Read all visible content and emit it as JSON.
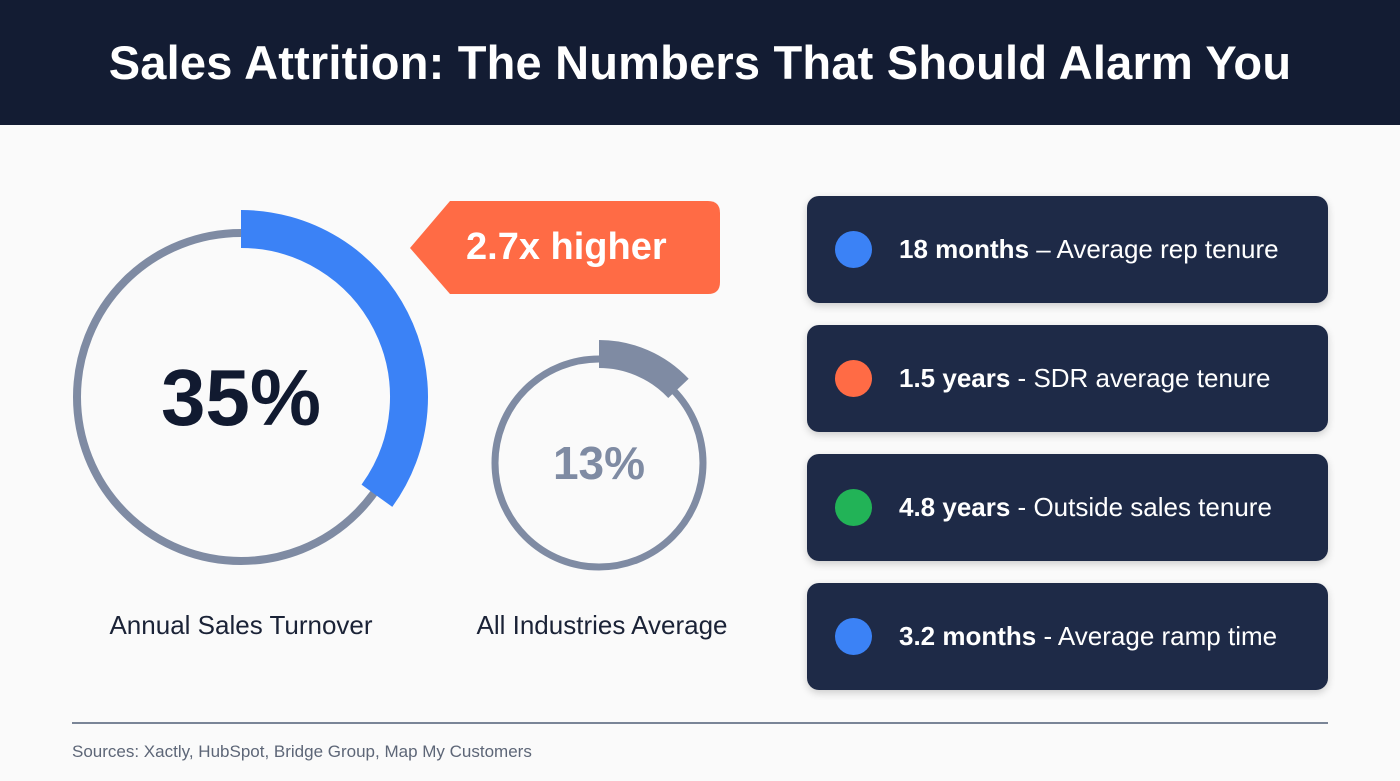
{
  "header": {
    "title": "Sales Attrition: The Numbers That Should Alarm You"
  },
  "chart_data": [
    {
      "type": "pie",
      "subtype": "donut-progress",
      "value": 35,
      "max": 100,
      "center_label": "35%",
      "label": "Annual Sales Turnover",
      "color": "#3b82f6",
      "track_color": "#7f8ba3"
    },
    {
      "type": "pie",
      "subtype": "donut-progress",
      "value": 13,
      "max": 100,
      "center_label": "13%",
      "label": "All Industries Average",
      "color": "#7f8ba3",
      "track_color": "#7f8ba3"
    }
  ],
  "callout": {
    "text": "2.7x higher",
    "color": "#ff6b45"
  },
  "stats": [
    {
      "value": "18 months",
      "sep": " – ",
      "desc": "Average rep tenure",
      "color": "#3b82f6"
    },
    {
      "value": "1.5 years",
      "sep": " - ",
      "desc": "SDR average tenure",
      "color": "#ff6b45"
    },
    {
      "value": "4.8 years",
      "sep": " - ",
      "desc": "Outside sales tenure",
      "color": "#22b357"
    },
    {
      "value": "3.2 months",
      "sep": " - ",
      "desc": "Average ramp time",
      "color": "#3b82f6"
    }
  ],
  "footer": {
    "sources": "Sources: Xactly, HubSpot, Bridge Group, Map My Customers"
  }
}
